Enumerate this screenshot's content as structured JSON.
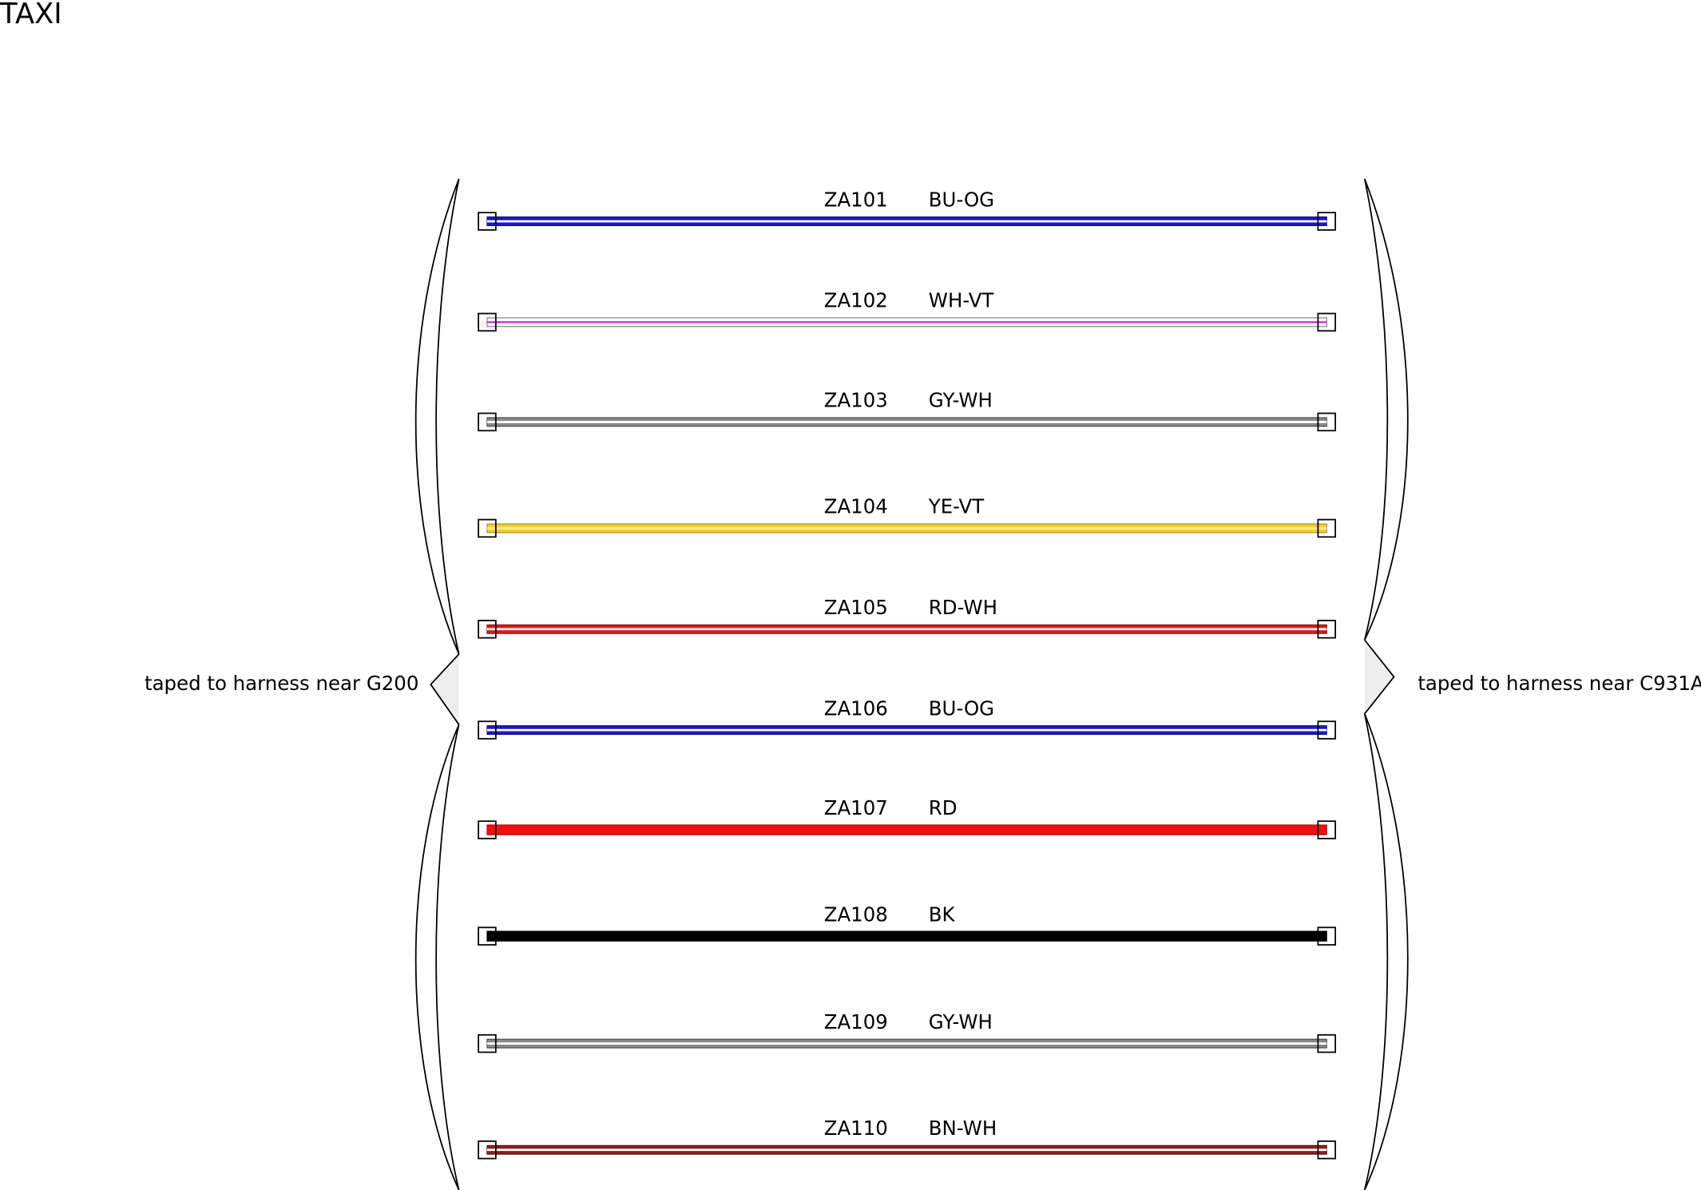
{
  "header": {
    "title": "TAXI"
  },
  "notes": {
    "left": "taped to harness near G200",
    "right": "taped to harness near C931A"
  },
  "wires": [
    {
      "id": "ZA101",
      "color_code": "BU-OG",
      "base": "#1a1ac8",
      "stripe": "#ffffff",
      "edge": "#0a0a80"
    },
    {
      "id": "ZA102",
      "color_code": "WH-VT",
      "base": "#ffffff",
      "stripe": "#e040e0",
      "edge": "#777777"
    },
    {
      "id": "ZA103",
      "color_code": "GY-WH",
      "base": "#8a8a8a",
      "stripe": "#ffffff",
      "edge": "#444444"
    },
    {
      "id": "ZA104",
      "color_code": "YE-VT",
      "base": "#f2d030",
      "stripe": "#fff080",
      "edge": "#a08820"
    },
    {
      "id": "ZA105",
      "color_code": "RD-WH",
      "base": "#e01818",
      "stripe": "#ffffff",
      "edge": "#901010"
    },
    {
      "id": "ZA106",
      "color_code": "BU-OG",
      "base": "#1a1ac8",
      "stripe": "#ffffff",
      "edge": "#0a0a80"
    },
    {
      "id": "ZA107",
      "color_code": "RD",
      "base": "#f01010",
      "stripe": "#f01010",
      "edge": "#c00000"
    },
    {
      "id": "ZA108",
      "color_code": "BK",
      "base": "#000000",
      "stripe": "#000000",
      "edge": "#000000"
    },
    {
      "id": "ZA109",
      "color_code": "GY-WH",
      "base": "#8a8a8a",
      "stripe": "#ffffff",
      "edge": "#444444"
    },
    {
      "id": "ZA110",
      "color_code": "BN-WH",
      "base": "#8a2020",
      "stripe": "#ffffff",
      "edge": "#501010"
    }
  ]
}
